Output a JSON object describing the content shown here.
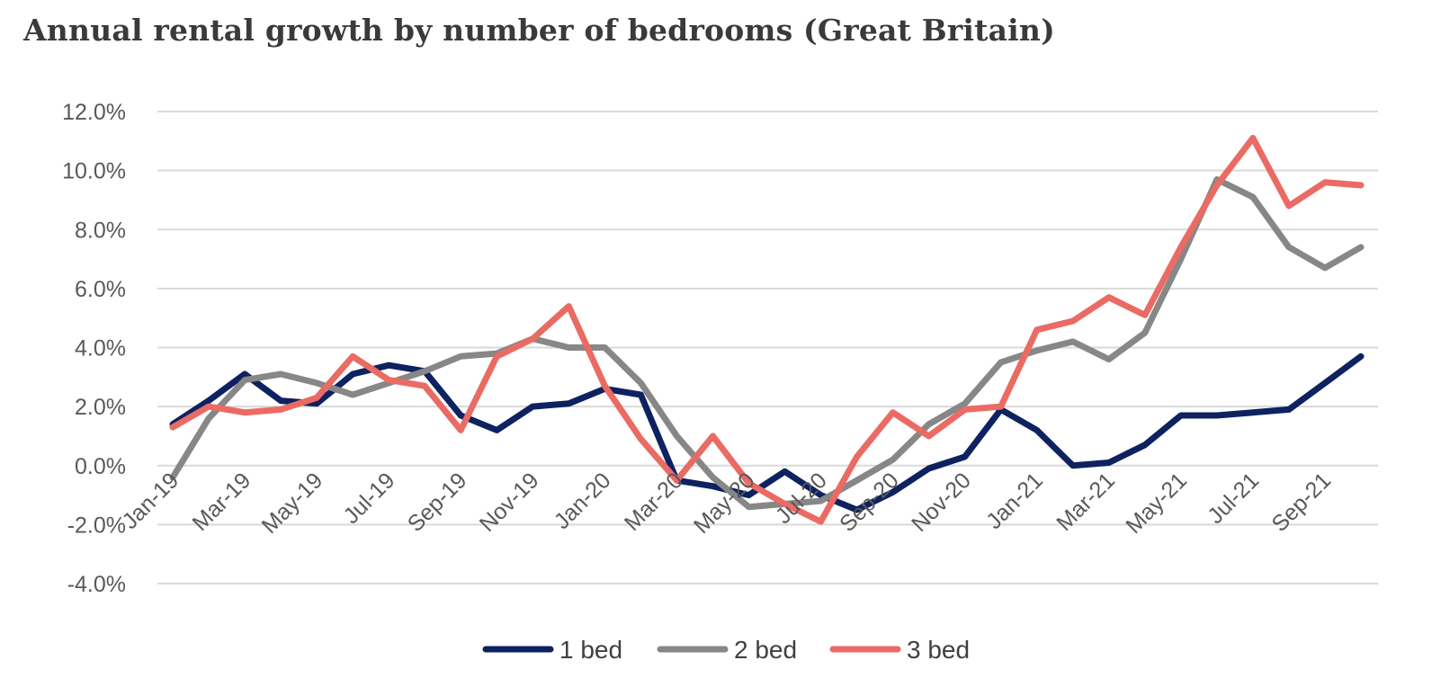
{
  "chart_data": {
    "type": "line",
    "title": "Annual rental growth by number of bedrooms (Great Britain)",
    "xlabel": "",
    "ylabel": "",
    "ylim": [
      -4,
      12
    ],
    "yticks": [
      12,
      10,
      8,
      6,
      4,
      2,
      0,
      -2,
      -4
    ],
    "ytick_labels": [
      "12.0%",
      "10.0%",
      "8.0%",
      "6.0%",
      "4.0%",
      "2.0%",
      "0.0%",
      "-2.0%",
      "-4.0%"
    ],
    "categories": [
      "Jan-19",
      "Feb-19",
      "Mar-19",
      "Apr-19",
      "May-19",
      "Jun-19",
      "Jul-19",
      "Aug-19",
      "Sep-19",
      "Oct-19",
      "Nov-19",
      "Dec-19",
      "Jan-20",
      "Feb-20",
      "Mar-20",
      "Apr-20",
      "May-20",
      "Jun-20",
      "Jul-20",
      "Aug-20",
      "Sep-20",
      "Oct-20",
      "Nov-20",
      "Dec-20",
      "Jan-21",
      "Feb-21",
      "Mar-21",
      "Apr-21",
      "May-21",
      "Jun-21",
      "Jul-21",
      "Aug-21",
      "Sep-21",
      "Oct-21"
    ],
    "tick_labels": [
      "Jan-19",
      "Mar-19",
      "May-19",
      "Jul-19",
      "Sep-19",
      "Nov-19",
      "Jan-20",
      "Mar-20",
      "May-20",
      "Jul-20",
      "Sep-20",
      "Nov-20",
      "Jan-21",
      "Mar-21",
      "May-21",
      "Jul-21",
      "Sep-21"
    ],
    "grid": true,
    "legend_position": "bottom",
    "series": [
      {
        "name": "1 bed",
        "color": "#0e2160",
        "values": [
          1.4,
          2.2,
          3.1,
          2.2,
          2.1,
          3.1,
          3.4,
          3.2,
          1.7,
          1.2,
          2.0,
          2.1,
          2.6,
          2.4,
          -0.5,
          -0.7,
          -1.0,
          -0.2,
          -1.0,
          -1.5,
          -0.9,
          -0.1,
          0.3,
          1.9,
          1.2,
          0.0,
          0.1,
          0.7,
          1.7,
          1.7,
          1.8,
          1.9,
          2.8,
          3.7
        ]
      },
      {
        "name": "2 bed",
        "color": "#878787",
        "values": [
          -0.4,
          1.6,
          2.9,
          3.1,
          2.8,
          2.4,
          2.8,
          3.2,
          3.7,
          3.8,
          4.3,
          4.0,
          4.0,
          2.8,
          1.0,
          -0.4,
          -1.4,
          -1.3,
          -1.2,
          -0.5,
          0.2,
          1.4,
          2.1,
          3.5,
          3.9,
          4.2,
          3.6,
          4.5,
          7.0,
          9.7,
          9.1,
          7.4,
          6.7,
          7.4
        ]
      },
      {
        "name": "3 bed",
        "color": "#ea6b64",
        "values": [
          1.3,
          2.0,
          1.8,
          1.9,
          2.3,
          3.7,
          2.9,
          2.7,
          1.2,
          3.7,
          4.3,
          5.4,
          2.7,
          0.9,
          -0.5,
          1.0,
          -0.6,
          -1.3,
          -1.9,
          0.3,
          1.8,
          1.0,
          1.9,
          2.0,
          4.6,
          4.9,
          5.7,
          5.1,
          7.4,
          9.5,
          11.1,
          8.8,
          9.6,
          9.5
        ]
      }
    ]
  }
}
